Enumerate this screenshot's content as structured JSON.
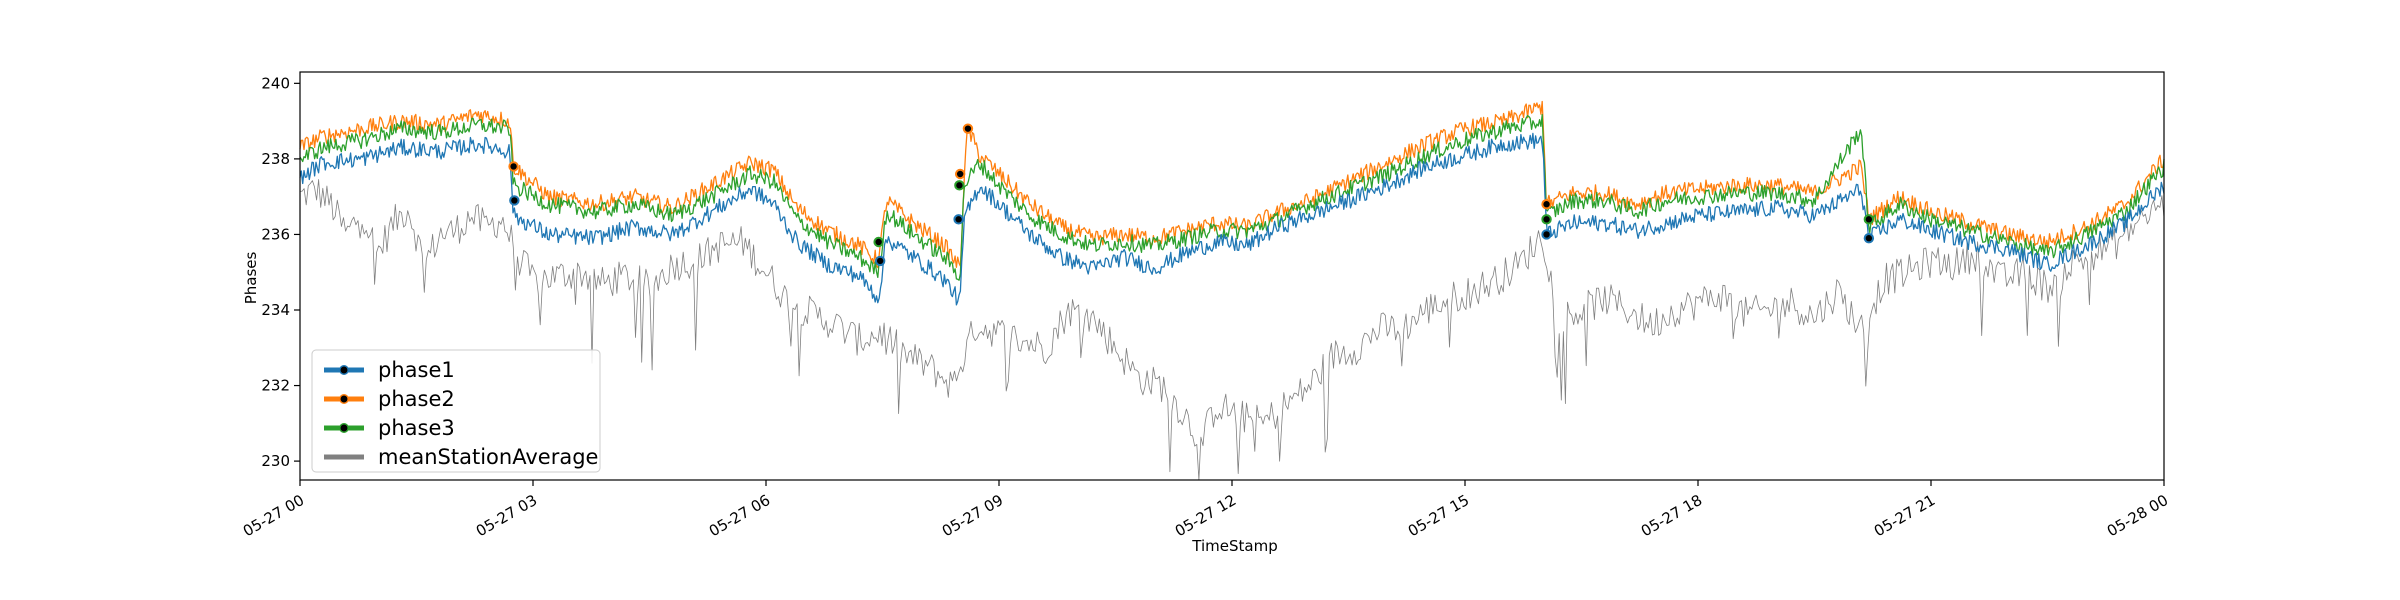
{
  "chart_data": {
    "type": "line",
    "title": "",
    "xlabel": "TimeStamp",
    "ylabel": "Phases",
    "ylim": [
      229.5,
      240.3
    ],
    "xlim_hours": [
      0,
      24
    ],
    "x_ticks": [
      {
        "hour": 0,
        "label": "05-27 00"
      },
      {
        "hour": 3,
        "label": "05-27 03"
      },
      {
        "hour": 6,
        "label": "05-27 06"
      },
      {
        "hour": 9,
        "label": "05-27 09"
      },
      {
        "hour": 12,
        "label": "05-27 12"
      },
      {
        "hour": 15,
        "label": "05-27 15"
      },
      {
        "hour": 18,
        "label": "05-27 18"
      },
      {
        "hour": 21,
        "label": "05-27 21"
      },
      {
        "hour": 24,
        "label": "05-28 00"
      }
    ],
    "y_ticks": [
      230,
      232,
      234,
      236,
      238,
      240
    ],
    "legend_position": "lower-left",
    "series": [
      {
        "name": "phase1",
        "color": "#1f77b4",
        "x": [
          0,
          0.3,
          0.8,
          1.3,
          1.8,
          2.3,
          2.7,
          2.75,
          3.2,
          3.8,
          4.3,
          4.8,
          5.3,
          5.8,
          6.1,
          6.4,
          6.8,
          7.2,
          7.45,
          7.55,
          7.9,
          8.3,
          8.5,
          8.55,
          8.75,
          9.0,
          9.4,
          9.8,
          10.2,
          10.6,
          11.0,
          11.4,
          11.8,
          12.2,
          12.6,
          13.0,
          13.5,
          14.0,
          14.5,
          15.0,
          15.5,
          16.0,
          16.05,
          16.4,
          16.8,
          17.2,
          17.6,
          18.0,
          18.5,
          19.0,
          19.5,
          20.1,
          20.2,
          20.6,
          21.0,
          21.5,
          22.0,
          22.5,
          23.0,
          23.5,
          24.0
        ],
        "values": [
          237.5,
          237.9,
          238.0,
          238.3,
          238.2,
          238.4,
          238.2,
          236.5,
          236.0,
          235.9,
          236.2,
          236.0,
          236.6,
          237.2,
          236.8,
          235.8,
          235.2,
          234.9,
          234.3,
          235.9,
          235.4,
          234.8,
          234.2,
          236.4,
          237.3,
          236.8,
          236.0,
          235.4,
          235.1,
          235.4,
          235.1,
          235.5,
          235.8,
          235.7,
          236.2,
          236.5,
          236.9,
          237.3,
          237.8,
          238.1,
          238.4,
          238.5,
          236.0,
          236.3,
          236.3,
          236.1,
          236.3,
          236.5,
          236.6,
          236.7,
          236.5,
          237.2,
          235.9,
          236.4,
          236.1,
          235.8,
          235.6,
          235.2,
          235.7,
          236.3,
          237.3
        ]
      },
      {
        "name": "phase2",
        "color": "#ff7f0e",
        "x": [
          0,
          0.3,
          0.8,
          1.3,
          1.8,
          2.3,
          2.7,
          2.75,
          3.2,
          3.8,
          4.3,
          4.8,
          5.3,
          5.8,
          6.1,
          6.4,
          6.8,
          7.2,
          7.45,
          7.55,
          7.9,
          8.3,
          8.5,
          8.55,
          8.6,
          8.75,
          9.0,
          9.4,
          9.8,
          10.2,
          10.6,
          11.0,
          11.4,
          11.8,
          12.2,
          12.6,
          13.0,
          13.5,
          14.0,
          14.5,
          15.0,
          15.5,
          16.0,
          16.05,
          16.4,
          16.8,
          17.2,
          17.6,
          18.0,
          18.5,
          19.0,
          19.5,
          20.1,
          20.2,
          20.6,
          21.0,
          21.5,
          22.0,
          22.5,
          23.0,
          23.5,
          24.0
        ],
        "values": [
          238.3,
          238.6,
          238.8,
          239.0,
          238.9,
          239.2,
          239.0,
          237.8,
          237.0,
          236.8,
          237.0,
          236.7,
          237.3,
          237.9,
          237.7,
          236.7,
          236.1,
          235.7,
          235.3,
          236.9,
          236.3,
          235.7,
          235.1,
          237.5,
          238.8,
          238.1,
          237.6,
          236.8,
          236.2,
          235.9,
          236.0,
          235.9,
          236.1,
          236.3,
          236.2,
          236.6,
          236.9,
          237.4,
          237.9,
          238.4,
          238.8,
          239.0,
          239.4,
          236.8,
          237.1,
          237.1,
          236.8,
          237.1,
          237.2,
          237.3,
          237.3,
          237.1,
          237.8,
          236.4,
          237.0,
          236.6,
          236.3,
          236.0,
          235.8,
          236.2,
          236.8,
          238.0
        ]
      },
      {
        "name": "phase3",
        "color": "#2ca02c",
        "x": [
          0,
          0.3,
          0.8,
          1.3,
          1.8,
          2.3,
          2.7,
          2.75,
          3.2,
          3.8,
          4.3,
          4.8,
          5.3,
          5.8,
          6.1,
          6.4,
          6.8,
          7.2,
          7.45,
          7.55,
          7.9,
          8.3,
          8.5,
          8.55,
          8.75,
          9.0,
          9.4,
          9.8,
          10.2,
          10.6,
          11.0,
          11.4,
          11.8,
          12.2,
          12.6,
          13.0,
          13.5,
          14.0,
          14.5,
          15.0,
          15.5,
          16.0,
          16.05,
          16.4,
          16.8,
          17.2,
          17.6,
          18.0,
          18.5,
          19.0,
          19.5,
          20.1,
          20.2,
          20.6,
          21.0,
          21.5,
          22.0,
          22.5,
          23.0,
          23.5,
          24.0
        ],
        "values": [
          238.0,
          238.3,
          238.5,
          238.8,
          238.7,
          238.9,
          238.8,
          237.3,
          236.8,
          236.6,
          236.8,
          236.5,
          237.0,
          237.6,
          237.4,
          236.4,
          235.8,
          235.4,
          235.0,
          236.6,
          236.0,
          235.4,
          234.9,
          237.3,
          237.9,
          237.3,
          236.5,
          236.0,
          235.7,
          235.8,
          235.7,
          235.9,
          236.1,
          236.1,
          236.4,
          236.8,
          237.2,
          237.6,
          238.1,
          238.5,
          238.8,
          239.0,
          236.5,
          236.9,
          236.9,
          236.6,
          236.9,
          237.0,
          237.1,
          237.1,
          236.9,
          238.8,
          236.2,
          236.8,
          236.4,
          236.1,
          235.8,
          235.5,
          236.0,
          236.6,
          237.8
        ]
      },
      {
        "name": "meanStationAverage",
        "color": "#808080",
        "x": [
          0,
          0.2,
          0.4,
          0.6,
          0.8,
          1.0,
          1.2,
          1.4,
          1.6,
          1.8,
          2.0,
          2.2,
          2.4,
          2.6,
          2.8,
          3.0,
          3.3,
          3.6,
          3.9,
          4.2,
          4.5,
          4.8,
          5.1,
          5.4,
          5.7,
          6.0,
          6.3,
          6.6,
          6.9,
          7.2,
          7.5,
          7.8,
          8.1,
          8.4,
          8.7,
          9.0,
          9.3,
          9.6,
          9.9,
          10.2,
          10.5,
          10.8,
          11.1,
          11.4,
          11.6,
          11.8,
          12.1,
          12.4,
          12.7,
          13.0,
          13.3,
          13.6,
          13.9,
          14.2,
          14.5,
          14.8,
          15.1,
          15.4,
          15.7,
          16.0,
          16.2,
          16.5,
          16.8,
          17.1,
          17.4,
          17.7,
          18.0,
          18.3,
          18.6,
          18.9,
          19.2,
          19.5,
          19.8,
          20.1,
          20.4,
          20.7,
          21.0,
          21.3,
          21.6,
          21.9,
          22.2,
          22.5,
          22.8,
          23.1,
          23.4,
          23.7,
          24.0
        ],
        "values": [
          237.0,
          237.2,
          236.8,
          236.0,
          236.6,
          235.5,
          236.3,
          236.7,
          235.2,
          236.0,
          236.1,
          236.5,
          236.2,
          236.4,
          235.5,
          234.8,
          234.9,
          235.0,
          234.7,
          234.9,
          234.6,
          235.2,
          235.3,
          235.7,
          235.8,
          235.0,
          234.2,
          233.9,
          233.6,
          233.2,
          233.4,
          232.8,
          232.5,
          232.0,
          233.6,
          233.4,
          233.2,
          233.0,
          234.0,
          233.8,
          233.0,
          232.2,
          232.0,
          231.2,
          230.5,
          231.5,
          231.2,
          231.0,
          231.5,
          232.0,
          232.8,
          233.0,
          233.5,
          233.5,
          234.0,
          234.3,
          234.5,
          234.8,
          235.2,
          236.0,
          233.8,
          234.0,
          234.3,
          234.0,
          233.6,
          234.0,
          234.2,
          234.4,
          233.9,
          234.0,
          234.2,
          233.8,
          234.5,
          233.5,
          234.8,
          235.0,
          235.3,
          235.2,
          235.5,
          234.8,
          235.0,
          234.6,
          235.2,
          235.5,
          235.8,
          236.4,
          236.8
        ]
      }
    ],
    "markers": [
      {
        "series": "phase2",
        "x": 2.75,
        "y": 237.8
      },
      {
        "series": "phase1",
        "x": 2.76,
        "y": 236.9
      },
      {
        "series": "phase3",
        "x": 7.45,
        "y": 235.8
      },
      {
        "series": "phase1",
        "x": 7.47,
        "y": 235.3
      },
      {
        "series": "phase2",
        "x": 8.5,
        "y": 237.6
      },
      {
        "series": "phase3",
        "x": 8.49,
        "y": 237.3
      },
      {
        "series": "phase1",
        "x": 8.48,
        "y": 236.4
      },
      {
        "series": "phase2",
        "x": 8.6,
        "y": 238.8
      },
      {
        "series": "phase2",
        "x": 16.05,
        "y": 236.8
      },
      {
        "series": "phase3",
        "x": 16.05,
        "y": 236.4
      },
      {
        "series": "phase1",
        "x": 16.05,
        "y": 236.0
      },
      {
        "series": "phase3",
        "x": 20.2,
        "y": 236.4
      },
      {
        "series": "phase1",
        "x": 20.2,
        "y": 235.9
      }
    ]
  }
}
